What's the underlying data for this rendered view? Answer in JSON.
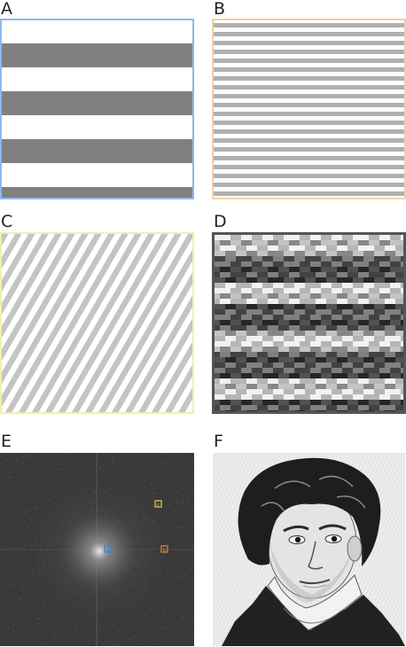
{
  "panels": {
    "a": {
      "label": "A",
      "border_color": "#8db8ee"
    },
    "b": {
      "label": "B",
      "border_color": "#f6cfa5"
    },
    "c": {
      "label": "C",
      "border_color": "#f4efaa"
    },
    "d": {
      "label": "D",
      "border_color": "#555555"
    },
    "e": {
      "label": "E"
    },
    "f": {
      "label": "F"
    }
  },
  "spectrum_markers": [
    {
      "label": "a",
      "color": "#3a7ee0"
    },
    {
      "label": "b",
      "color": "#e0883a"
    },
    {
      "label": "c",
      "color": "#e8d23a"
    }
  ],
  "colors": {
    "stripe_dark": "#808080",
    "stripe_light": "#b0b0b0",
    "portrait_bg": "#ececec"
  }
}
